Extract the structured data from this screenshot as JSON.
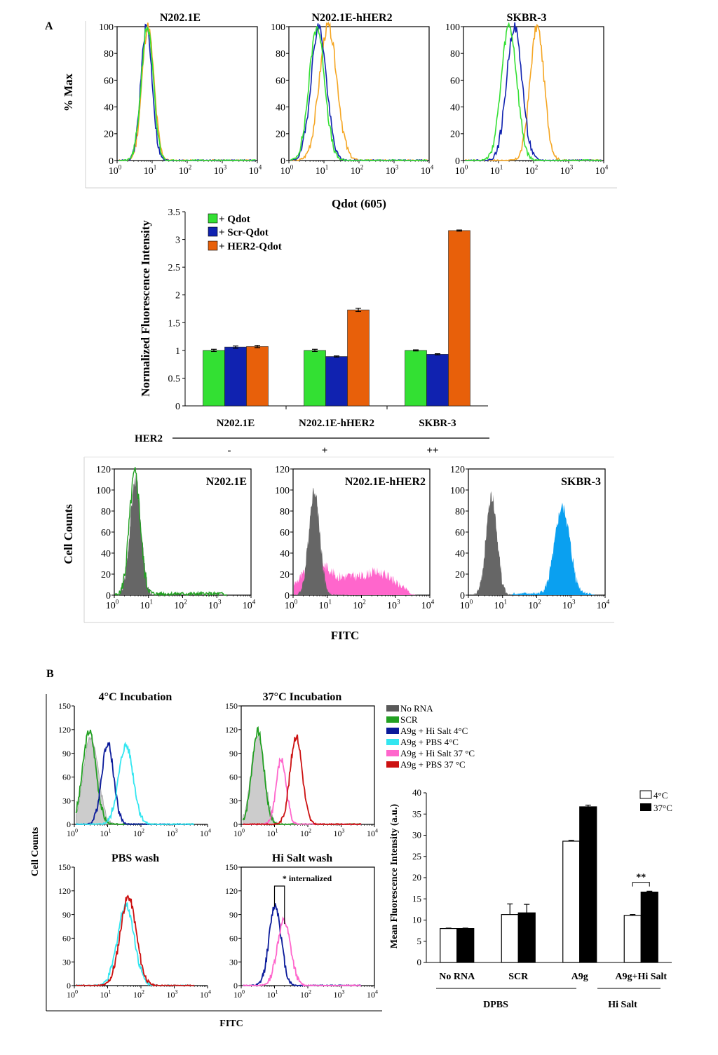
{
  "panel_labels": {
    "a": "A",
    "b": "B"
  },
  "colors": {
    "qdot": "#33e033",
    "scr": "#1022b0",
    "her2": "#e8600a",
    "her2_line": "#f5a623",
    "grey_fill": "#666666",
    "green_line": "#22a022",
    "pink_fill": "#ff66cc",
    "blue_fill": "#0aa0f0",
    "cyan": "#33e6f0",
    "pink": "#ff66cc",
    "red": "#cc1111",
    "navy": "#0a1a9a",
    "darkgrey": "#595959",
    "lightgrey": "#cccccc"
  },
  "panelA_histograms": {
    "ylabel": "% Max",
    "xlabel": "Qdot (605)",
    "yticks": [
      "0",
      "20",
      "40",
      "60",
      "80",
      "100"
    ],
    "xticks": [
      "0",
      "1",
      "2",
      "3",
      "4"
    ],
    "titles": [
      "N202.1E",
      "N202.1E-hHER2",
      "SKBR-3"
    ]
  },
  "chart_data": [
    {
      "id": "qdot_bar",
      "type": "bar",
      "ylabel": "Normalized Fluorescence Intensity",
      "categories": [
        "N202.1E",
        "N202.1E-hHER2",
        "SKBR-3"
      ],
      "ylim": [
        0,
        3.5
      ],
      "yticks": [
        "0",
        "0.5",
        "1",
        "1.5",
        "2",
        "2.5",
        "3",
        "3.5"
      ],
      "series": [
        {
          "name": "+ Qdot",
          "values": [
            1.0,
            1.0,
            1.0
          ],
          "errors": [
            0.02,
            0.02,
            0.01
          ]
        },
        {
          "name": "+ Scr-Qdot",
          "values": [
            1.06,
            0.89,
            0.93
          ],
          "errors": [
            0.02,
            0.01,
            0.01
          ]
        },
        {
          "name": "+ HER2-Qdot",
          "values": [
            1.07,
            1.73,
            3.16
          ],
          "errors": [
            0.02,
            0.03,
            0.01
          ]
        }
      ],
      "her2_label": "HER2",
      "her2_levels": [
        "-",
        "+",
        "++"
      ]
    },
    {
      "id": "fitc_hist_A",
      "type": "area",
      "ylabel": "Cell Counts",
      "xlabel": "FITC",
      "yticks": [
        "0",
        "20",
        "40",
        "60",
        "80",
        "100",
        "120"
      ],
      "xticks": [
        "0",
        "1",
        "2",
        "3",
        "4"
      ],
      "panels": [
        {
          "title": "N202.1E",
          "control_peak": 110,
          "sample_peak": 115,
          "sample_mode": "overlap"
        },
        {
          "title": "N202.1E-hHER2",
          "control_peak": 100,
          "sample_peak": 30,
          "sample_mode": "broad"
        },
        {
          "title": "SKBR-3",
          "control_peak": 95,
          "sample_peak": 82,
          "sample_mode": "shifted"
        }
      ]
    },
    {
      "id": "panelB_hist",
      "type": "line",
      "ylabel": "Cell Counts",
      "xlabel": "FITC",
      "yticks": [
        "0",
        "30",
        "60",
        "90",
        "120",
        "150"
      ],
      "xticks": [
        "0",
        "1",
        "2",
        "3",
        "4"
      ],
      "panels": [
        {
          "title": "4°C Incubation"
        },
        {
          "title": "37°C Incubation"
        },
        {
          "title": "PBS wash"
        },
        {
          "title": "Hi Salt wash",
          "annotation": "* internalized"
        }
      ],
      "legend": [
        "No RNA",
        "SCR",
        "A9g + Hi Salt 4°C",
        "A9g + PBS 4°C",
        "A9g + Hi Salt 37 °C",
        "A9g + PBS 37 °C"
      ]
    },
    {
      "id": "mfi_bar",
      "type": "bar",
      "ylabel": "Mean Fluorescence Intensity (a.u.)",
      "categories": [
        "No RNA",
        "SCR",
        "A9g",
        "A9g+Hi Salt"
      ],
      "ylim": [
        0,
        40
      ],
      "yticks": [
        "0",
        "5",
        "10",
        "15",
        "20",
        "25",
        "30",
        "35",
        "40"
      ],
      "series": [
        {
          "name": "4°C",
          "values": [
            8.0,
            11.3,
            28.6,
            11.1
          ],
          "errors": [
            0.1,
            2.5,
            0.2,
            0.2
          ]
        },
        {
          "name": "37°C",
          "values": [
            8.0,
            11.7,
            36.7,
            16.6
          ],
          "errors": [
            0.1,
            2.0,
            0.4,
            0.2
          ]
        }
      ],
      "groups": [
        {
          "label": "DPBS",
          "span": [
            "No RNA",
            "A9g"
          ]
        },
        {
          "label": "Hi Salt",
          "span": [
            "A9g+Hi Salt",
            "A9g+Hi Salt"
          ]
        }
      ],
      "significance": "**"
    }
  ]
}
